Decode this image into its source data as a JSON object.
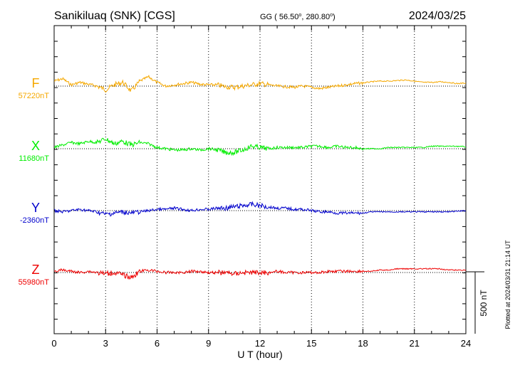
{
  "header": {
    "station": "Sanikiluaq (SNK)  [CGS]",
    "coords": "GG ( 56.50",
    "coords_sep": ", 280.80",
    "coords_end": ")",
    "date": "2024/03/25"
  },
  "footer": {
    "plotted": "Plotted at 2024/03/31 21:14 UT",
    "scale_label": "500 nT"
  },
  "colors": {
    "F": "#f5a800",
    "X": "#00ee00",
    "Y": "#0000cc",
    "Z": "#ee0000",
    "axis": "#000000"
  },
  "chart_data": {
    "type": "line",
    "xlabel": "U T (hour)",
    "xlim": [
      0,
      24
    ],
    "x_ticks": [
      "0",
      "3",
      "6",
      "9",
      "12",
      "15",
      "18",
      "21",
      "24"
    ],
    "grid": "dotted vertical every 3 h",
    "scale_bar_nT": 500,
    "series": [
      {
        "name": "F",
        "baseline": "57220nT",
        "points": [
          [
            0,
            -8
          ],
          [
            0.5,
            -12
          ],
          [
            1,
            -2
          ],
          [
            1.5,
            -6
          ],
          [
            2,
            -3
          ],
          [
            2.5,
            0
          ],
          [
            3,
            6
          ],
          [
            3.5,
            -2
          ],
          [
            4,
            -6
          ],
          [
            4.5,
            8
          ],
          [
            5,
            -8
          ],
          [
            5.5,
            -15
          ],
          [
            6,
            -6
          ],
          [
            6.5,
            0
          ],
          [
            7,
            -2
          ],
          [
            7.5,
            -4
          ],
          [
            8,
            -6
          ],
          [
            8.5,
            -3
          ],
          [
            9,
            -2
          ],
          [
            9.5,
            -2
          ],
          [
            10,
            1
          ],
          [
            10.5,
            2
          ],
          [
            11,
            0
          ],
          [
            11.5,
            -2
          ],
          [
            12,
            -4
          ],
          [
            12.5,
            -2
          ],
          [
            13,
            0
          ],
          [
            13.5,
            1
          ],
          [
            14,
            2
          ],
          [
            14.5,
            0
          ],
          [
            15,
            2
          ],
          [
            15.5,
            4
          ],
          [
            16,
            2
          ],
          [
            16.5,
            0
          ],
          [
            17,
            -2
          ],
          [
            17.5,
            -4
          ],
          [
            18,
            -5
          ],
          [
            18.5,
            -7
          ],
          [
            19,
            -8
          ],
          [
            19.5,
            -8
          ],
          [
            20,
            -9
          ],
          [
            20.5,
            -10
          ],
          [
            21,
            -8
          ],
          [
            21.5,
            -6
          ],
          [
            22,
            -6
          ],
          [
            22.5,
            -7
          ],
          [
            23,
            -6
          ],
          [
            23.5,
            -4
          ],
          [
            24,
            -5
          ]
        ]
      },
      {
        "name": "X",
        "baseline": "11680nT",
        "points": [
          [
            0,
            -2
          ],
          [
            0.5,
            -6
          ],
          [
            1,
            -10
          ],
          [
            1.5,
            -8
          ],
          [
            2,
            -12
          ],
          [
            2.5,
            -10
          ],
          [
            3,
            -16
          ],
          [
            3.5,
            -8
          ],
          [
            4,
            -12
          ],
          [
            4.5,
            -6
          ],
          [
            5,
            -10
          ],
          [
            5.5,
            -8
          ],
          [
            6,
            -2
          ],
          [
            6.5,
            0
          ],
          [
            7,
            2
          ],
          [
            7.5,
            2
          ],
          [
            8,
            0
          ],
          [
            8.5,
            2
          ],
          [
            9,
            0
          ],
          [
            9.5,
            2
          ],
          [
            10,
            6
          ],
          [
            10.5,
            6
          ],
          [
            11,
            2
          ],
          [
            11.5,
            -4
          ],
          [
            12,
            -2
          ],
          [
            12.5,
            0
          ],
          [
            13,
            -2
          ],
          [
            13.5,
            -2
          ],
          [
            14,
            -2
          ],
          [
            14.5,
            -2
          ],
          [
            15,
            -4
          ],
          [
            15.5,
            -4
          ],
          [
            16,
            -2
          ],
          [
            16.5,
            -4
          ],
          [
            17,
            -2
          ],
          [
            17.5,
            -2
          ],
          [
            18,
            0
          ],
          [
            18.5,
            0
          ],
          [
            19,
            0
          ],
          [
            19.5,
            -2
          ],
          [
            20,
            -2
          ],
          [
            20.5,
            -2
          ],
          [
            21,
            -2
          ],
          [
            21.5,
            -2
          ],
          [
            22,
            -4
          ],
          [
            22.5,
            -4
          ],
          [
            23,
            -4
          ],
          [
            23.5,
            -4
          ],
          [
            24,
            -3
          ]
        ]
      },
      {
        "name": "Y",
        "baseline": "-2360nT",
        "points": [
          [
            0,
            0
          ],
          [
            0.5,
            2
          ],
          [
            1,
            0
          ],
          [
            1.5,
            -2
          ],
          [
            2,
            0
          ],
          [
            2.5,
            2
          ],
          [
            3,
            6
          ],
          [
            3.5,
            4
          ],
          [
            4,
            2
          ],
          [
            4.5,
            4
          ],
          [
            5,
            2
          ],
          [
            5.5,
            0
          ],
          [
            6,
            -2
          ],
          [
            6.5,
            -2
          ],
          [
            7,
            -4
          ],
          [
            7.5,
            -2
          ],
          [
            8,
            0
          ],
          [
            8.5,
            -2
          ],
          [
            9,
            -2
          ],
          [
            9.5,
            -4
          ],
          [
            10,
            -4
          ],
          [
            10.5,
            -6
          ],
          [
            11,
            -8
          ],
          [
            11.5,
            -10
          ],
          [
            12,
            -8
          ],
          [
            12.5,
            -6
          ],
          [
            13,
            -4
          ],
          [
            13.5,
            -4
          ],
          [
            14,
            -2
          ],
          [
            14.5,
            -2
          ],
          [
            15,
            0
          ],
          [
            15.5,
            2
          ],
          [
            16,
            2
          ],
          [
            16.5,
            4
          ],
          [
            17,
            4
          ],
          [
            17.5,
            4
          ],
          [
            18,
            4
          ],
          [
            18.5,
            2
          ],
          [
            19,
            2
          ],
          [
            19.5,
            2
          ],
          [
            20,
            2
          ],
          [
            20.5,
            2
          ],
          [
            21,
            2
          ],
          [
            21.5,
            2
          ],
          [
            22,
            2
          ],
          [
            22.5,
            2
          ],
          [
            23,
            2
          ],
          [
            23.5,
            1
          ],
          [
            24,
            0
          ]
        ]
      },
      {
        "name": "Z",
        "baseline": "55980nT",
        "points": [
          [
            0,
            -2
          ],
          [
            0.5,
            -4
          ],
          [
            1,
            -2
          ],
          [
            1.5,
            0
          ],
          [
            2,
            -2
          ],
          [
            2.5,
            0
          ],
          [
            3,
            2
          ],
          [
            3.5,
            0
          ],
          [
            4,
            4
          ],
          [
            4.5,
            8
          ],
          [
            5,
            -2
          ],
          [
            5.5,
            -4
          ],
          [
            6,
            -2
          ],
          [
            6.5,
            0
          ],
          [
            7,
            0
          ],
          [
            7.5,
            0
          ],
          [
            8,
            -2
          ],
          [
            8.5,
            -2
          ],
          [
            9,
            0
          ],
          [
            9.5,
            0
          ],
          [
            10,
            0
          ],
          [
            10.5,
            2
          ],
          [
            11,
            0
          ],
          [
            11.5,
            0
          ],
          [
            12,
            0
          ],
          [
            12.5,
            0
          ],
          [
            13,
            -2
          ],
          [
            13.5,
            0
          ],
          [
            14,
            0
          ],
          [
            14.5,
            0
          ],
          [
            15,
            0
          ],
          [
            15.5,
            0
          ],
          [
            16,
            -2
          ],
          [
            16.5,
            -2
          ],
          [
            17,
            -2
          ],
          [
            17.5,
            -2
          ],
          [
            18,
            -2
          ],
          [
            18.5,
            -2
          ],
          [
            19,
            -4
          ],
          [
            19.5,
            -4
          ],
          [
            20,
            -6
          ],
          [
            20.5,
            -6
          ],
          [
            21,
            -6
          ],
          [
            21.5,
            -6
          ],
          [
            22,
            -6
          ],
          [
            22.5,
            -6
          ],
          [
            23,
            -4
          ],
          [
            23.5,
            -4
          ],
          [
            24,
            -4
          ]
        ]
      }
    ]
  }
}
